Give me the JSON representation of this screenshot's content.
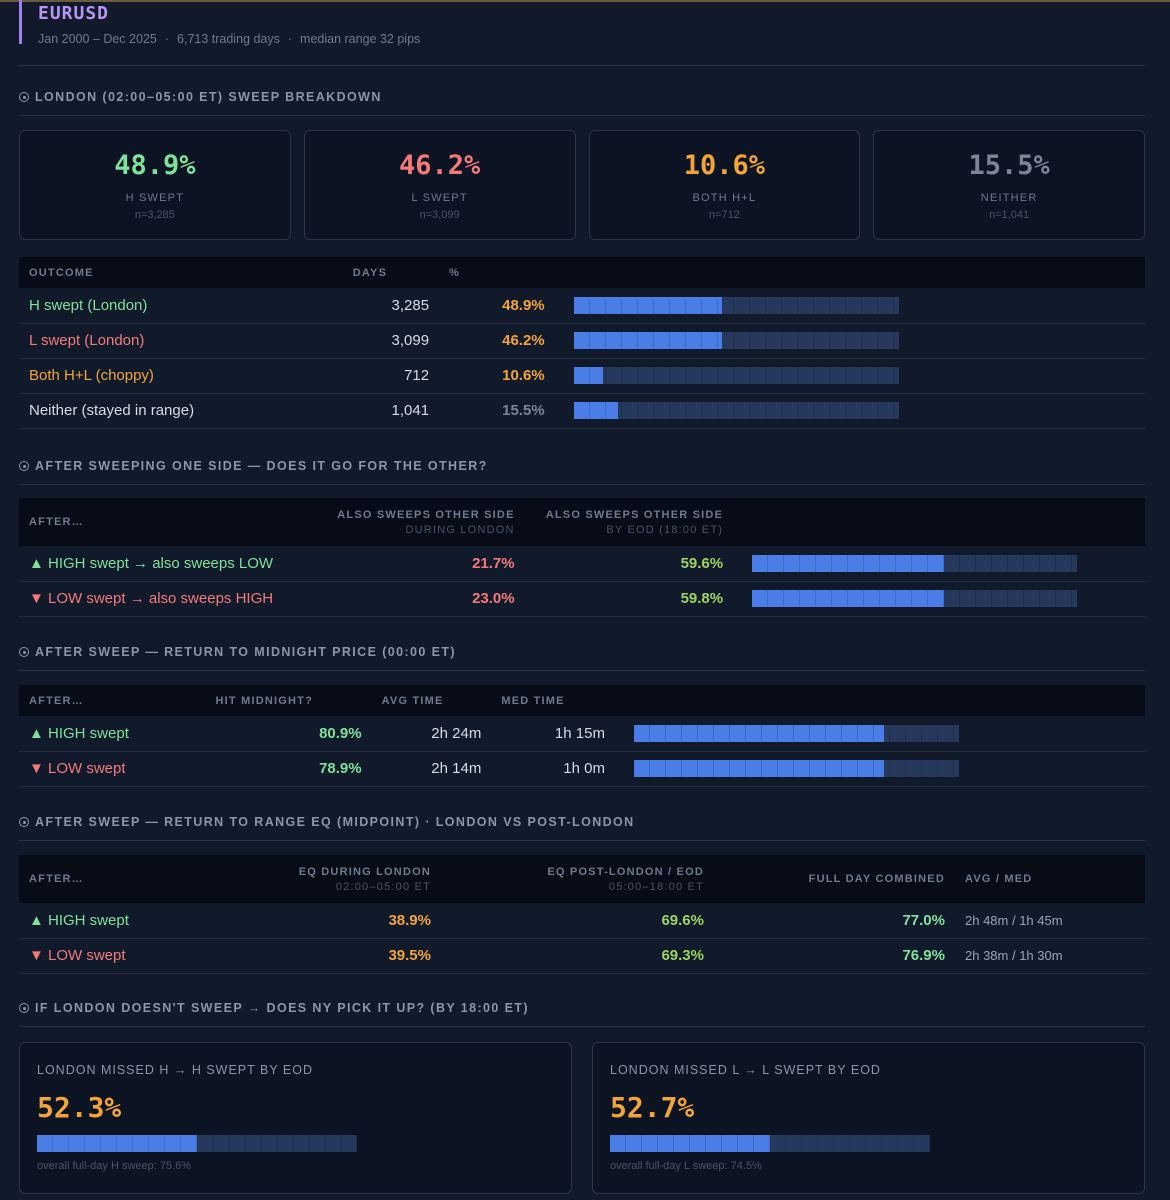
{
  "header": {
    "symbol": "EURUSD",
    "range": "Jan 2000 – Dec 2025",
    "days": "6,713 trading days",
    "median": "median range 32 pips"
  },
  "colors": {
    "accent": "#b794f6",
    "green": "#7ee29b",
    "red": "#f47a7a",
    "orange": "#f2a43a",
    "bar": "#4a7ee6"
  },
  "sections": {
    "s1": "LONDON (02:00–05:00 ET) SWEEP BREAKDOWN",
    "s2": "AFTER SWEEPING ONE SIDE — DOES IT GO FOR THE OTHER?",
    "s3": "AFTER SWEEP — RETURN TO MIDNIGHT PRICE (00:00 ET)",
    "s4": "AFTER SWEEP — RETURN TO RANGE EQ (MIDPOINT) · LONDON VS POST-LONDON",
    "s5": "IF LONDON DOESN'T SWEEP → DOES NY PICK IT UP? (BY 18:00 ET)"
  },
  "cards": [
    {
      "value": "48.9%",
      "label": "H SWEPT",
      "n": "n=3,285"
    },
    {
      "value": "46.2%",
      "label": "L SWEPT",
      "n": "n=3,099"
    },
    {
      "value": "10.6%",
      "label": "BOTH H+L",
      "n": "n=712"
    },
    {
      "value": "15.5%",
      "label": "NEITHER",
      "n": "n=1,041"
    }
  ],
  "outcome": {
    "headers": {
      "outcome": "OUTCOME",
      "days": "DAYS",
      "pct": "%"
    },
    "rows": [
      {
        "label": "H swept (London)",
        "days": "3,285",
        "pct": "48.9%",
        "frac": 0.455
      },
      {
        "label": "L swept (London)",
        "days": "3,099",
        "pct": "46.2%",
        "frac": 0.455
      },
      {
        "label": "Both H+L (choppy)",
        "days": "712",
        "pct": "10.6%",
        "frac": 0.09
      },
      {
        "label": "Neither (stayed in range)",
        "days": "1,041",
        "pct": "15.5%",
        "frac": 0.135
      }
    ]
  },
  "other": {
    "headers": {
      "after": "AFTER…",
      "during": "ALSO SWEEPS OTHER SIDE",
      "during_sub": "DURING LONDON",
      "eod": "ALSO SWEEPS OTHER SIDE",
      "eod_sub": "BY EOD (18:00 ET)"
    },
    "rows": [
      {
        "label": "▲ HIGH swept → also sweeps LOW",
        "during": "21.7%",
        "eod": "59.6%",
        "frac": 0.59
      },
      {
        "label": "▼ LOW swept → also sweeps HIGH",
        "during": "23.0%",
        "eod": "59.8%",
        "frac": 0.59
      }
    ]
  },
  "midnight": {
    "headers": {
      "after": "AFTER…",
      "hit": "HIT MIDNIGHT?",
      "avg": "AVG TIME",
      "med": "MED TIME"
    },
    "rows": [
      {
        "label": "▲ HIGH swept",
        "hit": "80.9%",
        "avg": "2h 24m",
        "med": "1h 15m",
        "frac": 0.77
      },
      {
        "label": "▼ LOW swept",
        "hit": "78.9%",
        "avg": "2h 14m",
        "med": "1h 0m",
        "frac": 0.77
      }
    ]
  },
  "eq": {
    "headers": {
      "after": "AFTER…",
      "london": "EQ DURING LONDON",
      "london_sub": "02:00–05:00 ET",
      "post": "EQ POST-LONDON / EOD",
      "post_sub": "05:00–18:00 ET",
      "full": "FULL DAY COMBINED",
      "avgmed": "AVG / MED"
    },
    "rows": [
      {
        "label": "▲ HIGH swept",
        "london": "38.9%",
        "post": "69.6%",
        "full": "77.0%",
        "avgmed": "2h 48m / 1h 45m"
      },
      {
        "label": "▼ LOW swept",
        "london": "39.5%",
        "post": "69.3%",
        "full": "76.9%",
        "avgmed": "2h 38m / 1h 30m"
      }
    ]
  },
  "ny": [
    {
      "label": "LONDON MISSED H → H SWEPT BY EOD",
      "value": "52.3%",
      "foot": "overall full-day H sweep: 75.6%",
      "frac": 0.5
    },
    {
      "label": "LONDON MISSED L → L SWEPT BY EOD",
      "value": "52.7%",
      "foot": "overall full-day L sweep: 74.5%",
      "frac": 0.5
    }
  ]
}
